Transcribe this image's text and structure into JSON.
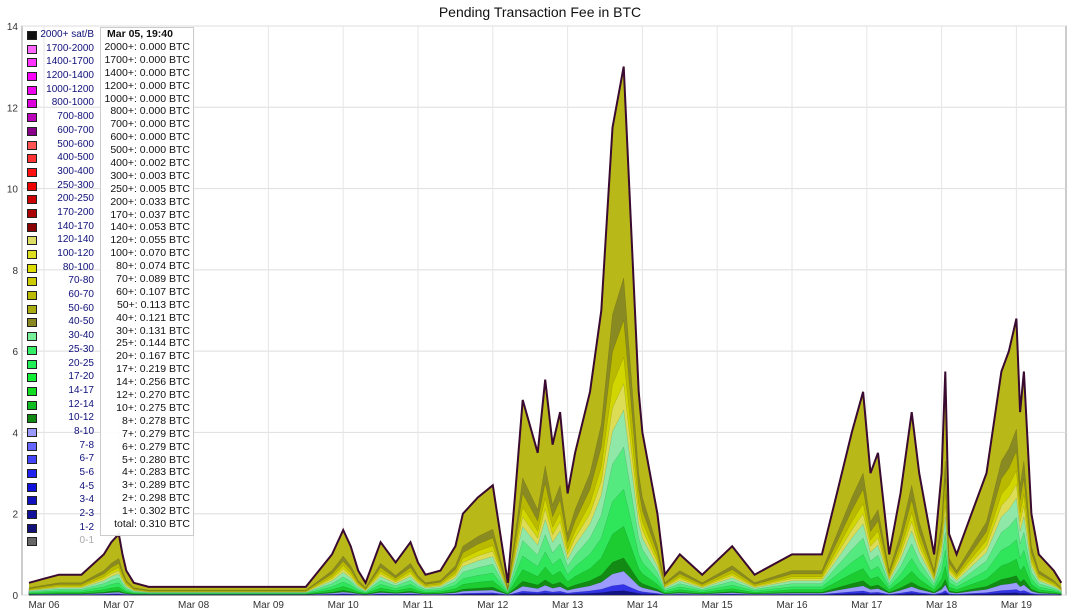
{
  "chart_data": {
    "type": "area",
    "title": "Pending Transaction Fee in BTC",
    "ylim": [
      0,
      14
    ],
    "y_ticks": [
      0,
      2,
      4,
      6,
      8,
      10,
      12,
      14
    ],
    "x_ticks": [
      "Mar 06",
      "Mar 07",
      "Mar 08",
      "Mar 09",
      "Mar 10",
      "Mar 11",
      "Mar 12",
      "Mar 13",
      "Mar 14",
      "Mar 15",
      "Mar 16",
      "Mar 17",
      "Mar 18",
      "Mar 19"
    ],
    "grid": true,
    "legend": [
      {
        "label": "2000+ sat/B",
        "color": "#111111"
      },
      {
        "label": "1700-2000",
        "color": "#ff66ff"
      },
      {
        "label": "1400-1700",
        "color": "#ff33ff"
      },
      {
        "label": "1200-1400",
        "color": "#ff00ff"
      },
      {
        "label": "1000-1200",
        "color": "#ee00ee"
      },
      {
        "label": "800-1000",
        "color": "#dd00dd"
      },
      {
        "label": "700-800",
        "color": "#bb00bb"
      },
      {
        "label": "600-700",
        "color": "#880088"
      },
      {
        "label": "500-600",
        "color": "#ff5555"
      },
      {
        "label": "400-500",
        "color": "#ff3333"
      },
      {
        "label": "300-400",
        "color": "#ff1111"
      },
      {
        "label": "250-300",
        "color": "#ee0000"
      },
      {
        "label": "200-250",
        "color": "#cc0000"
      },
      {
        "label": "170-200",
        "color": "#aa0000"
      },
      {
        "label": "140-170",
        "color": "#880000"
      },
      {
        "label": "120-140",
        "color": "#dddd66"
      },
      {
        "label": "100-120",
        "color": "#dddd22"
      },
      {
        "label": "80-100",
        "color": "#dddd00"
      },
      {
        "label": "70-80",
        "color": "#cccc00"
      },
      {
        "label": "60-70",
        "color": "#bbbb00"
      },
      {
        "label": "50-60",
        "color": "#aaaa11"
      },
      {
        "label": "40-50",
        "color": "#888822"
      },
      {
        "label": "30-40",
        "color": "#77ee99"
      },
      {
        "label": "25-30",
        "color": "#33ee66"
      },
      {
        "label": "20-25",
        "color": "#22ee55"
      },
      {
        "label": "17-20",
        "color": "#11ee33"
      },
      {
        "label": "14-17",
        "color": "#11dd22"
      },
      {
        "label": "12-14",
        "color": "#11bb22"
      },
      {
        "label": "10-12",
        "color": "#118811"
      },
      {
        "label": "8-10",
        "color": "#9999ff"
      },
      {
        "label": "7-8",
        "color": "#6666ff"
      },
      {
        "label": "6-7",
        "color": "#4444ff"
      },
      {
        "label": "5-6",
        "color": "#2222ee"
      },
      {
        "label": "4-5",
        "color": "#1111dd"
      },
      {
        "label": "3-4",
        "color": "#1111bb"
      },
      {
        "label": "2-3",
        "color": "#111199"
      },
      {
        "label": "1-2",
        "color": "#111177"
      },
      {
        "label": "0-1",
        "color": "#666666",
        "muted": true
      }
    ],
    "tooltip": {
      "time": "Mar 05, 19:40",
      "rows": [
        {
          "k": "2000+:",
          "v": "0.000 BTC"
        },
        {
          "k": "1700+:",
          "v": "0.000 BTC"
        },
        {
          "k": "1400+:",
          "v": "0.000 BTC"
        },
        {
          "k": "1200+:",
          "v": "0.000 BTC"
        },
        {
          "k": "1000+:",
          "v": "0.000 BTC"
        },
        {
          "k": "800+:",
          "v": "0.000 BTC"
        },
        {
          "k": "700+:",
          "v": "0.000 BTC"
        },
        {
          "k": "600+:",
          "v": "0.000 BTC"
        },
        {
          "k": "500+:",
          "v": "0.000 BTC"
        },
        {
          "k": "400+:",
          "v": "0.002 BTC"
        },
        {
          "k": "300+:",
          "v": "0.003 BTC"
        },
        {
          "k": "250+:",
          "v": "0.005 BTC"
        },
        {
          "k": "200+:",
          "v": "0.033 BTC"
        },
        {
          "k": "170+:",
          "v": "0.037 BTC"
        },
        {
          "k": "140+:",
          "v": "0.053 BTC"
        },
        {
          "k": "120+:",
          "v": "0.055 BTC"
        },
        {
          "k": "100+:",
          "v": "0.070 BTC"
        },
        {
          "k": "80+:",
          "v": "0.074 BTC"
        },
        {
          "k": "70+:",
          "v": "0.089 BTC"
        },
        {
          "k": "60+:",
          "v": "0.107 BTC"
        },
        {
          "k": "50+:",
          "v": "0.113 BTC"
        },
        {
          "k": "40+:",
          "v": "0.121 BTC"
        },
        {
          "k": "30+:",
          "v": "0.131 BTC"
        },
        {
          "k": "25+:",
          "v": "0.144 BTC"
        },
        {
          "k": "20+:",
          "v": "0.167 BTC"
        },
        {
          "k": "17+:",
          "v": "0.219 BTC"
        },
        {
          "k": "14+:",
          "v": "0.256 BTC"
        },
        {
          "k": "12+:",
          "v": "0.270 BTC"
        },
        {
          "k": "10+:",
          "v": "0.275 BTC"
        },
        {
          "k": "8+:",
          "v": "0.278 BTC"
        },
        {
          "k": "7+:",
          "v": "0.279 BTC"
        },
        {
          "k": "6+:",
          "v": "0.279 BTC"
        },
        {
          "k": "5+:",
          "v": "0.280 BTC"
        },
        {
          "k": "4+:",
          "v": "0.283 BTC"
        },
        {
          "k": "3+:",
          "v": "0.289 BTC"
        },
        {
          "k": "2+:",
          "v": "0.298 BTC"
        },
        {
          "k": "1+:",
          "v": "0.302 BTC"
        },
        {
          "k": "total:",
          "v": "0.310 BTC"
        }
      ]
    },
    "x_days": [
      5.8,
      6.0,
      6.2,
      6.5,
      6.8,
      6.9,
      7.0,
      7.05,
      7.1,
      7.2,
      7.4,
      7.8,
      8.2,
      8.6,
      9.0,
      9.5,
      9.85,
      10.0,
      10.1,
      10.2,
      10.3,
      10.5,
      10.7,
      10.9,
      11.0,
      11.1,
      11.3,
      11.5,
      11.6,
      11.8,
      12.0,
      12.2,
      12.3,
      12.4,
      12.6,
      12.7,
      12.8,
      12.9,
      13.0,
      13.1,
      13.3,
      13.45,
      13.6,
      13.75,
      13.85,
      13.95,
      14.0,
      14.1,
      14.2,
      14.3,
      14.5,
      14.8,
      15.2,
      15.5,
      16.0,
      16.4,
      16.6,
      16.8,
      16.95,
      17.05,
      17.15,
      17.3,
      17.45,
      17.6,
      17.7,
      17.8,
      17.9,
      18.0,
      18.05,
      18.1,
      18.2,
      18.4,
      18.6,
      18.8,
      18.9,
      19.0,
      19.05,
      19.1,
      19.2,
      19.3,
      19.5,
      19.6
    ],
    "total": [
      0.3,
      0.4,
      0.5,
      0.5,
      1.0,
      1.3,
      1.5,
      1.0,
      0.6,
      0.3,
      0.2,
      0.2,
      0.2,
      0.2,
      0.2,
      0.2,
      1.0,
      1.6,
      1.2,
      0.6,
      0.3,
      1.3,
      0.8,
      1.3,
      0.8,
      0.5,
      0.6,
      1.2,
      2.0,
      2.4,
      2.7,
      0.3,
      2.5,
      4.8,
      3.5,
      5.3,
      3.7,
      4.5,
      2.5,
      3.5,
      5.0,
      7.0,
      11.5,
      13.0,
      9.0,
      5.0,
      4.0,
      3.0,
      2.0,
      0.5,
      1.0,
      0.5,
      1.2,
      0.5,
      1.0,
      1.0,
      2.5,
      4.0,
      5.0,
      3.0,
      3.5,
      1.0,
      2.5,
      4.5,
      3.0,
      2.0,
      1.0,
      3.0,
      5.5,
      1.5,
      1.0,
      2.0,
      3.0,
      5.5,
      6.0,
      6.8,
      4.5,
      5.5,
      2.0,
      1.0,
      0.6,
      0.3
    ],
    "series_fractions": [
      {
        "name": "40-50",
        "fraction": 0.6,
        "color": "#8a8a22"
      },
      {
        "name": "60-70",
        "fraction": 0.52,
        "color": "#b9b900"
      },
      {
        "name": "80-100",
        "fraction": 0.45,
        "color": "#d2d600"
      },
      {
        "name": "100-120",
        "fraction": 0.4,
        "color": "#dcdc55"
      },
      {
        "name": "30-40",
        "fraction": 0.35,
        "color": "#8fe8a8"
      },
      {
        "name": "25-30",
        "fraction": 0.28,
        "color": "#55ea80"
      },
      {
        "name": "20-25",
        "fraction": 0.2,
        "color": "#2fe65a"
      },
      {
        "name": "14-17",
        "fraction": 0.13,
        "color": "#1ccc30"
      },
      {
        "name": "10-12",
        "fraction": 0.07,
        "color": "#128a14"
      },
      {
        "name": "8-10",
        "fraction": 0.045,
        "color": "#9c9cff"
      },
      {
        "name": "5-6",
        "fraction": 0.02,
        "color": "#3232e6"
      },
      {
        "name": "1-2",
        "fraction": 0.008,
        "color": "#141480"
      }
    ]
  }
}
